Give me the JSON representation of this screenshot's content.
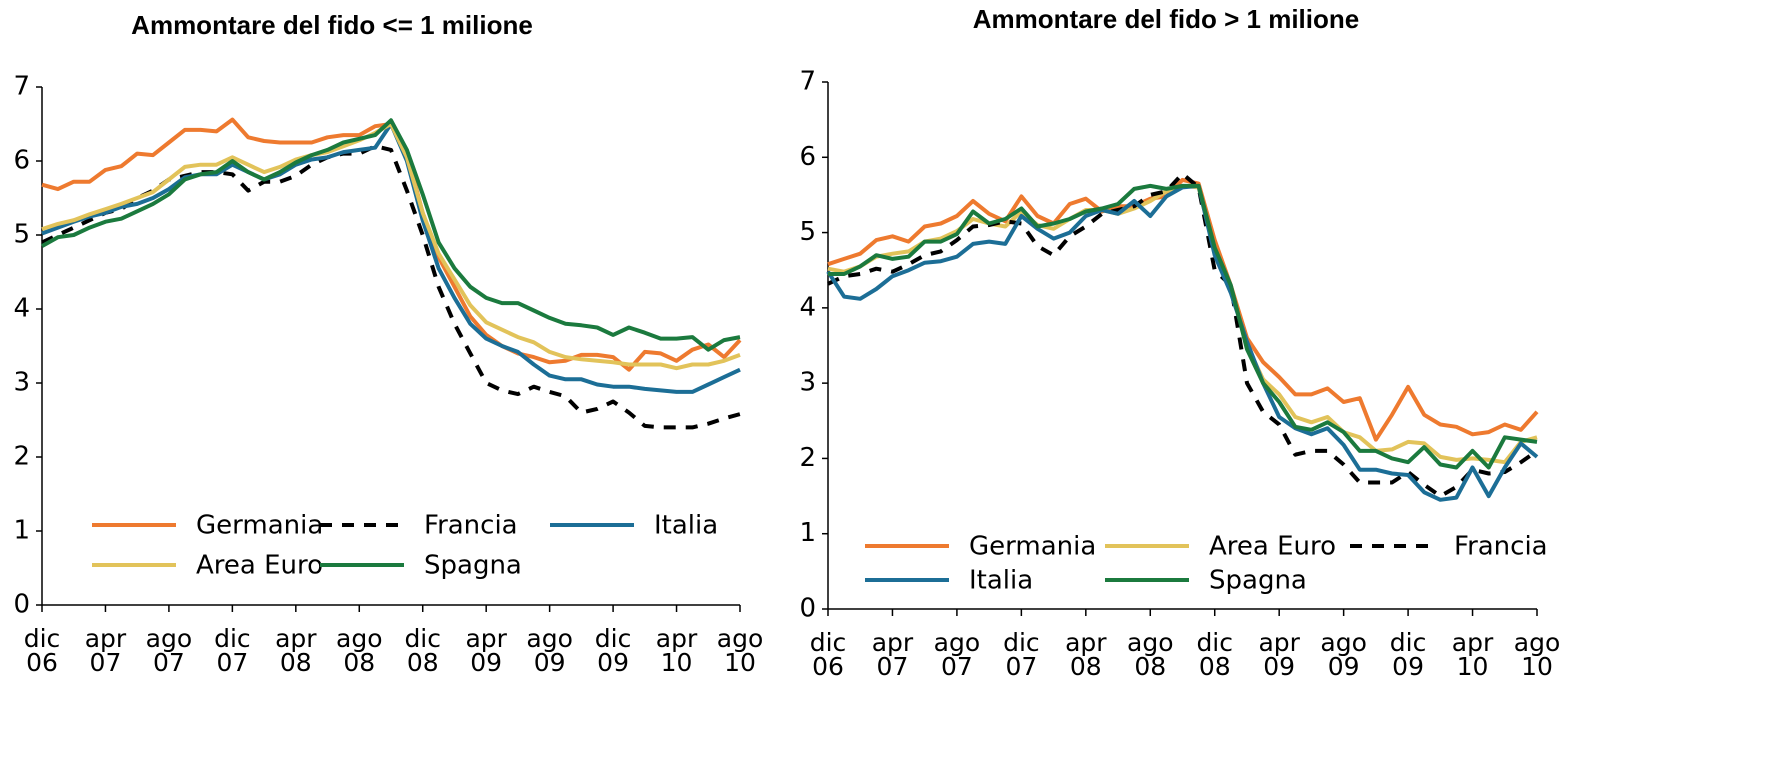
{
  "chart_data": [
    {
      "type": "line",
      "title": "Ammontare del fido <= 1 milione",
      "categories": [
        "dic 06",
        null,
        null,
        null,
        "apr 07",
        null,
        null,
        null,
        "ago 07",
        null,
        null,
        null,
        "dic 07",
        null,
        null,
        null,
        "apr 08",
        null,
        null,
        null,
        "ago 08",
        null,
        null,
        null,
        "dic 08",
        null,
        null,
        null,
        "apr 09",
        null,
        null,
        null,
        "ago 09",
        null,
        null,
        null,
        "dic 09",
        null,
        null,
        null,
        "apr 10",
        null,
        null,
        null,
        "ago 10"
      ],
      "ylim": [
        0,
        7
      ],
      "yticks": [
        0,
        1,
        2,
        3,
        4,
        5,
        6,
        7
      ],
      "grid": false,
      "legend": "lower center",
      "series": [
        {
          "name": "Germania",
          "color": "#ee7a2f",
          "dash": false,
          "values": [
            5.68,
            5.62,
            5.72,
            5.72,
            5.88,
            5.93,
            6.1,
            6.08,
            6.25,
            6.42,
            6.42,
            6.4,
            6.56,
            6.32,
            6.27,
            6.25,
            6.25,
            6.25,
            6.32,
            6.35,
            6.35,
            6.47,
            6.5,
            6.1,
            5.3,
            4.7,
            4.3,
            3.9,
            3.65,
            3.5,
            3.4,
            3.35,
            3.28,
            3.3,
            3.38,
            3.38,
            3.35,
            3.18,
            3.42,
            3.4,
            3.3,
            3.45,
            3.52,
            3.35,
            3.58
          ]
        },
        {
          "name": "Francia",
          "color": "#000000",
          "dash": true,
          "values": [
            4.9,
            5.0,
            5.1,
            5.2,
            5.3,
            5.35,
            5.5,
            5.6,
            5.75,
            5.8,
            5.85,
            5.85,
            5.82,
            5.6,
            5.72,
            5.72,
            5.8,
            5.95,
            6.05,
            6.1,
            6.1,
            6.2,
            6.15,
            5.6,
            5.0,
            4.3,
            3.8,
            3.4,
            3.0,
            2.9,
            2.85,
            2.95,
            2.88,
            2.82,
            2.6,
            2.65,
            2.75,
            2.6,
            2.42,
            2.4,
            2.4,
            2.4,
            2.45,
            2.52,
            2.58
          ]
        },
        {
          "name": "Italia",
          "color": "#1c6e96",
          "dash": false,
          "values": [
            5.02,
            5.1,
            5.18,
            5.25,
            5.3,
            5.38,
            5.42,
            5.5,
            5.62,
            5.78,
            5.82,
            5.82,
            5.95,
            5.85,
            5.75,
            5.82,
            5.95,
            6.02,
            6.05,
            6.12,
            6.15,
            6.18,
            6.5,
            6.0,
            5.2,
            4.55,
            4.15,
            3.8,
            3.6,
            3.5,
            3.42,
            3.25,
            3.1,
            3.05,
            3.05,
            2.98,
            2.95,
            2.95,
            2.92,
            2.9,
            2.88,
            2.88,
            2.98,
            3.08,
            3.18
          ]
        },
        {
          "name": "Area Euro",
          "color": "#e2c35a",
          "dash": false,
          "values": [
            5.08,
            5.15,
            5.2,
            5.28,
            5.35,
            5.42,
            5.5,
            5.58,
            5.75,
            5.92,
            5.95,
            5.95,
            6.05,
            5.95,
            5.85,
            5.92,
            6.02,
            6.08,
            6.12,
            6.2,
            6.28,
            6.38,
            6.5,
            6.05,
            5.3,
            4.75,
            4.4,
            4.05,
            3.82,
            3.72,
            3.62,
            3.55,
            3.42,
            3.35,
            3.32,
            3.3,
            3.28,
            3.25,
            3.25,
            3.25,
            3.2,
            3.25,
            3.25,
            3.3,
            3.38
          ]
        },
        {
          "name": "Spagna",
          "color": "#1b7a3e",
          "dash": false,
          "values": [
            4.85,
            4.97,
            5.0,
            5.1,
            5.18,
            5.22,
            5.32,
            5.42,
            5.55,
            5.75,
            5.82,
            5.85,
            6.0,
            5.85,
            5.75,
            5.85,
            5.98,
            6.08,
            6.15,
            6.25,
            6.3,
            6.35,
            6.55,
            6.15,
            5.55,
            4.9,
            4.55,
            4.3,
            4.15,
            4.08,
            4.08,
            3.98,
            3.88,
            3.8,
            3.78,
            3.75,
            3.65,
            3.75,
            3.68,
            3.6,
            3.6,
            3.62,
            3.45,
            3.58,
            3.62
          ]
        }
      ]
    },
    {
      "type": "line",
      "title": "Ammontare del fido > 1 milione",
      "categories": [
        "dic 06",
        null,
        null,
        null,
        "apr 07",
        null,
        null,
        null,
        "ago 07",
        null,
        null,
        null,
        "dic 07",
        null,
        null,
        null,
        "apr 08",
        null,
        null,
        null,
        "ago 08",
        null,
        null,
        null,
        "dic 08",
        null,
        null,
        null,
        "apr 09",
        null,
        null,
        null,
        "ago 09",
        null,
        null,
        null,
        "dic 09",
        null,
        null,
        null,
        "apr 10",
        null,
        null,
        null,
        "ago 10"
      ],
      "ylim": [
        0,
        7
      ],
      "yticks": [
        0,
        1,
        2,
        3,
        4,
        5,
        6,
        7
      ],
      "grid": false,
      "legend": "lower center",
      "series": [
        {
          "name": "Germania",
          "color": "#ee7a2f",
          "dash": false,
          "values": [
            4.58,
            4.65,
            4.72,
            4.9,
            4.95,
            4.88,
            5.08,
            5.12,
            5.22,
            5.42,
            5.25,
            5.15,
            5.48,
            5.22,
            5.12,
            5.38,
            5.45,
            5.28,
            5.35,
            5.35,
            5.45,
            5.48,
            5.7,
            5.65,
            4.9,
            4.3,
            3.6,
            3.28,
            3.08,
            2.85,
            2.85,
            2.93,
            2.75,
            2.8,
            2.25,
            2.58,
            2.95,
            2.58,
            2.45,
            2.42,
            2.32,
            2.35,
            2.45,
            2.38,
            2.62
          ]
        },
        {
          "name": "Area Euro",
          "color": "#e2c35a",
          "dash": false,
          "values": [
            4.52,
            4.48,
            4.55,
            4.68,
            4.72,
            4.75,
            4.88,
            4.92,
            5.02,
            5.18,
            5.12,
            5.08,
            5.28,
            5.1,
            5.05,
            5.18,
            5.3,
            5.3,
            5.25,
            5.32,
            5.42,
            5.55,
            5.62,
            5.6,
            4.75,
            4.25,
            3.5,
            3.05,
            2.85,
            2.55,
            2.48,
            2.55,
            2.35,
            2.28,
            2.1,
            2.12,
            2.22,
            2.2,
            2.02,
            1.98,
            2.0,
            1.98,
            1.95,
            2.22,
            2.28
          ]
        },
        {
          "name": "Francia",
          "color": "#000000",
          "dash": true,
          "values": [
            4.32,
            4.42,
            4.45,
            4.52,
            4.48,
            4.58,
            4.7,
            4.75,
            4.9,
            5.08,
            5.1,
            5.15,
            5.12,
            4.82,
            4.7,
            4.95,
            5.08,
            5.25,
            5.3,
            5.35,
            5.5,
            5.55,
            5.78,
            5.6,
            4.5,
            4.3,
            3.0,
            2.62,
            2.45,
            2.05,
            2.1,
            2.1,
            1.92,
            1.68,
            1.68,
            1.68,
            1.82,
            1.65,
            1.5,
            1.62,
            1.85,
            1.8,
            1.82,
            1.95,
            2.1
          ]
        },
        {
          "name": "Italia",
          "color": "#1c6e96",
          "dash": false,
          "values": [
            4.48,
            4.15,
            4.12,
            4.25,
            4.42,
            4.5,
            4.6,
            4.62,
            4.68,
            4.85,
            4.88,
            4.85,
            5.22,
            5.05,
            4.92,
            5.0,
            5.22,
            5.3,
            5.25,
            5.42,
            5.22,
            5.48,
            5.6,
            5.62,
            4.7,
            4.2,
            3.55,
            3.0,
            2.55,
            2.4,
            2.32,
            2.4,
            2.18,
            1.85,
            1.85,
            1.8,
            1.78,
            1.55,
            1.45,
            1.48,
            1.88,
            1.5,
            1.88,
            2.2,
            2.02
          ]
        },
        {
          "name": "Spagna",
          "color": "#1b7a3e",
          "dash": false,
          "values": [
            4.45,
            4.45,
            4.55,
            4.7,
            4.65,
            4.68,
            4.88,
            4.88,
            4.98,
            5.28,
            5.12,
            5.18,
            5.32,
            5.08,
            5.12,
            5.18,
            5.28,
            5.32,
            5.38,
            5.58,
            5.62,
            5.58,
            5.62,
            5.62,
            4.8,
            4.3,
            3.45,
            3.0,
            2.75,
            2.42,
            2.38,
            2.48,
            2.35,
            2.1,
            2.1,
            2.0,
            1.95,
            2.15,
            1.92,
            1.88,
            2.1,
            1.88,
            2.28,
            2.25,
            2.22
          ]
        }
      ]
    }
  ]
}
